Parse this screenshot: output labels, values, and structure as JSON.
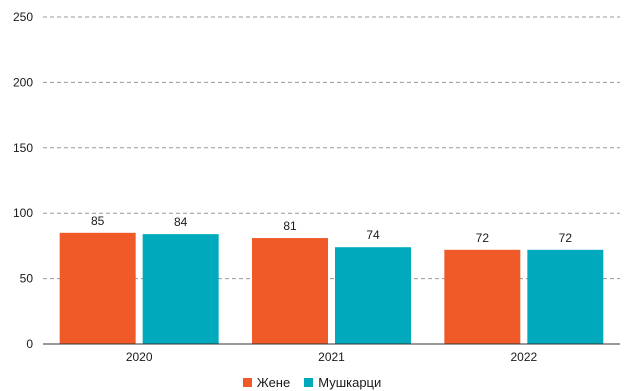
{
  "chart_data": {
    "type": "bar",
    "title": "",
    "xlabel": "",
    "ylabel": "",
    "categories": [
      "2020",
      "2021",
      "2022"
    ],
    "series": [
      {
        "name": "Жене",
        "values": [
          85,
          81,
          72
        ],
        "color": "#f05a28"
      },
      {
        "name": "Мушкарци",
        "values": [
          84,
          74,
          72
        ],
        "color": "#00aabc"
      }
    ],
    "ylim": [
      0,
      250
    ],
    "yticks": [
      0,
      50,
      100,
      150,
      200,
      250
    ],
    "grid": true,
    "legend_position": "bottom-center"
  }
}
